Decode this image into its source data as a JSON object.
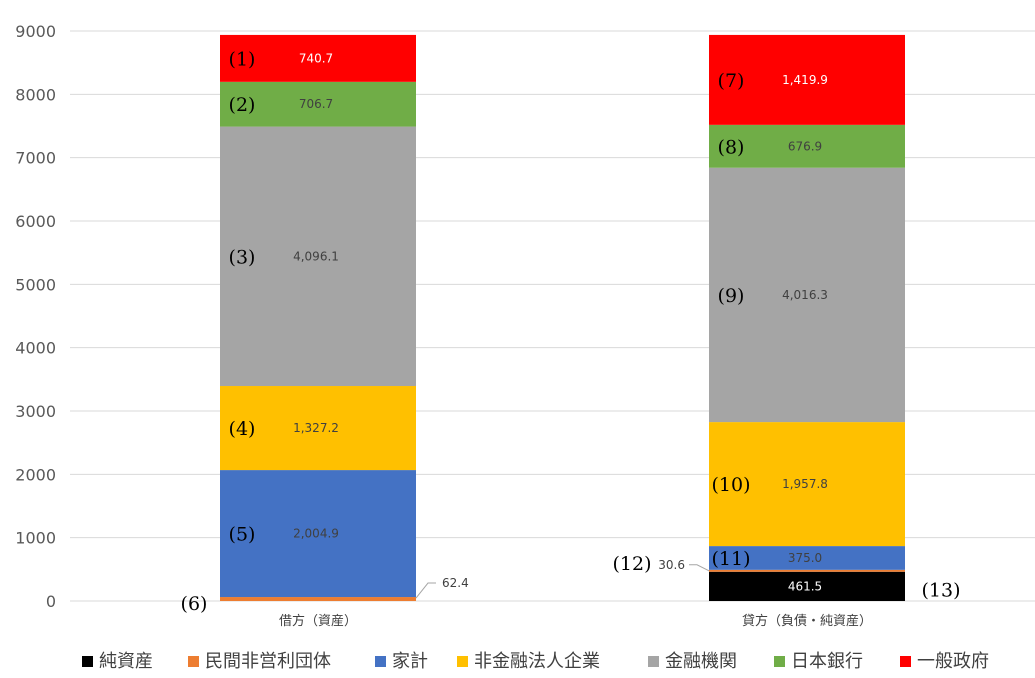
{
  "colors": {
    "net_assets": "#000000",
    "npish": "#ed7d31",
    "households": "#4472c4",
    "nonfinancial_corps": "#ffc000",
    "financial_institutions": "#a5a5a5",
    "boj": "#70ad47",
    "general_government": "#ff0000"
  },
  "chart_data": {
    "type": "bar",
    "stacked": true,
    "title": "",
    "xlabel": "",
    "ylabel": "",
    "ylim": [
      0,
      9000
    ],
    "yticks": [
      "0",
      "1000",
      "2000",
      "3000",
      "4000",
      "5000",
      "6000",
      "7000",
      "8000",
      "9000"
    ],
    "grid": true,
    "legend_position": "bottom",
    "categories": [
      "借方（資産）",
      "貸方（負債・純資産）"
    ],
    "legend": [
      "純資産",
      "民間非営利団体",
      "家計",
      "非金融法人企業",
      "金融機関",
      "日本銀行",
      "一般政府"
    ],
    "series": [
      {
        "name": "純資産",
        "color_key": "net_assets",
        "values": [
          null,
          461.5
        ],
        "labels": [
          "",
          "461.5"
        ],
        "markers": [
          "",
          "(13)"
        ]
      },
      {
        "name": "民間非営利団体",
        "color_key": "npish",
        "values": [
          62.4,
          30.6
        ],
        "labels": [
          "62.4",
          "30.6"
        ],
        "markers": [
          "(6)",
          "(12)"
        ]
      },
      {
        "name": "家計",
        "color_key": "households",
        "values": [
          2004.9,
          375.0
        ],
        "labels": [
          "2,004.9",
          "375.0"
        ],
        "markers": [
          "(5)",
          "(11)"
        ]
      },
      {
        "name": "非金融法人企業",
        "color_key": "nonfinancial_corps",
        "values": [
          1327.2,
          1957.8
        ],
        "labels": [
          "1,327.2",
          "1,957.8"
        ],
        "markers": [
          "(4)",
          "(10)"
        ]
      },
      {
        "name": "金融機関",
        "color_key": "financial_institutions",
        "values": [
          4096.1,
          4016.3
        ],
        "labels": [
          "4,096.1",
          "4,016.3"
        ],
        "markers": [
          "(3)",
          "(9)"
        ]
      },
      {
        "name": "日本銀行",
        "color_key": "boj",
        "values": [
          706.7,
          676.9
        ],
        "labels": [
          "706.7",
          "676.9"
        ],
        "markers": [
          "(2)",
          "(8)"
        ]
      },
      {
        "name": "一般政府",
        "color_key": "general_government",
        "values": [
          740.7,
          1419.9
        ],
        "labels": [
          "740.7",
          "1,419.9"
        ],
        "markers": [
          "(1)",
          "(7)"
        ]
      }
    ]
  }
}
